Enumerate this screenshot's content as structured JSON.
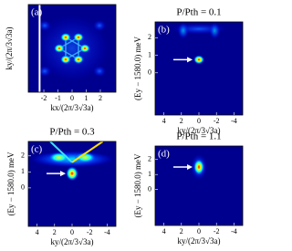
{
  "chart_data": [
    {
      "type": "heatmap",
      "panel": "(a)",
      "xlabel": "kx/(2π/3√3a)",
      "ylabel": "ky/(2π/3√3a)",
      "xlim": [
        -3.1,
        3.1
      ],
      "xticks": [
        -2,
        -1,
        0,
        1,
        2
      ]
    },
    {
      "type": "heatmap",
      "panel": "(b)",
      "title": "P/Pth = 0.1",
      "xlabel": "ky/(2π/3√3a)",
      "ylabel": "(Ey − 1580.0) meV",
      "xlim": [
        5,
        -5
      ],
      "xticks": [
        4,
        2,
        0,
        -2,
        -4
      ],
      "ylim": [
        -2.4,
        2.9
      ],
      "yticks": [
        0,
        1,
        2
      ]
    },
    {
      "type": "heatmap",
      "panel": "(c)",
      "title": "P/Pth = 0.3",
      "xlabel": "ky/(2π/3√3a)",
      "ylabel": "(Ey − 1580.0) meV",
      "xlim": [
        5,
        -5
      ],
      "xticks": [
        4,
        2,
        0,
        -2,
        -4
      ],
      "ylim": [
        -2.4,
        2.9
      ],
      "yticks": [
        0,
        1,
        2
      ]
    },
    {
      "type": "heatmap",
      "panel": "(d)",
      "title": "P/Pth = 1.1",
      "xlabel": "ky/(2π/3√3a)",
      "ylabel": "(Ey − 1580.0) meV",
      "xlim": [
        5,
        -5
      ],
      "xticks": [
        4,
        2,
        0,
        -2,
        -4
      ],
      "ylim": [
        -2.4,
        2.9
      ],
      "yticks": [
        0,
        1,
        2
      ]
    }
  ]
}
